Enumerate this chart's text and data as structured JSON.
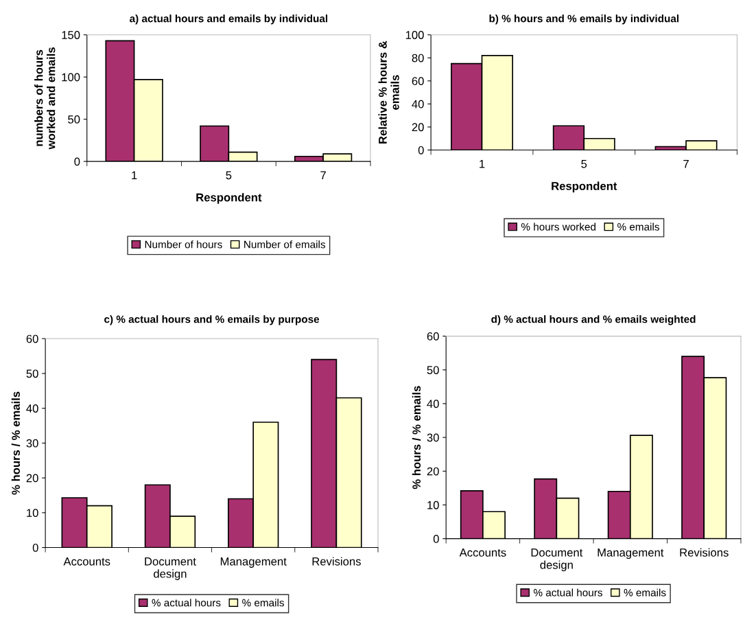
{
  "chart_data": [
    {
      "type": "bar",
      "title": "a) actual hours and emails by individual",
      "xlabel": "Respondent",
      "ylabel": "numbers of hours\nworked and emails",
      "categories": [
        "1",
        "5",
        "7"
      ],
      "series": [
        {
          "name": "Number of hours",
          "color": "#a8306e",
          "values": [
            143,
            42,
            6
          ]
        },
        {
          "name": "Number of emails",
          "color": "#ffffcc",
          "values": [
            97,
            11,
            9
          ]
        }
      ],
      "ylim": [
        0,
        150
      ],
      "yticks": [
        0,
        50,
        100,
        150
      ],
      "grid": false,
      "legend": "bottom"
    },
    {
      "type": "bar",
      "title": "b) % hours and % emails by individual",
      "xlabel": "Respondent",
      "ylabel": "Relative % hours &\nemails",
      "categories": [
        "1",
        "5",
        "7"
      ],
      "series": [
        {
          "name": "% hours worked",
          "color": "#a8306e",
          "values": [
            75,
            21,
            3
          ]
        },
        {
          "name": "% emails",
          "color": "#ffffcc",
          "values": [
            82,
            10,
            8
          ]
        }
      ],
      "ylim": [
        0,
        100
      ],
      "yticks": [
        0,
        20,
        40,
        60,
        80,
        100
      ],
      "grid": false,
      "legend": "bottom"
    },
    {
      "type": "bar",
      "title": "c) % actual hours and % emails by purpose",
      "ylabel": "% hours / % emails",
      "categories": [
        "Accounts",
        "Document\ndesign",
        "Management",
        "Revisions"
      ],
      "series": [
        {
          "name": "% actual hours",
          "color": "#a8306e",
          "values": [
            14.3,
            18,
            14,
            54
          ]
        },
        {
          "name": "% emails",
          "color": "#ffffcc",
          "values": [
            12,
            9,
            36,
            43
          ]
        }
      ],
      "ylim": [
        0,
        60
      ],
      "yticks": [
        0,
        10,
        20,
        30,
        40,
        50,
        60
      ],
      "grid": false,
      "legend": "bottom"
    },
    {
      "type": "bar",
      "title": "d) % actual hours and % emails weighted",
      "ylabel": "% hours / % emails",
      "categories": [
        "Accounts",
        "Document\ndesign",
        "Management",
        "Revisions"
      ],
      "series": [
        {
          "name": "% actual hours",
          "color": "#a8306e",
          "values": [
            14.2,
            17.7,
            14,
            54
          ]
        },
        {
          "name": "% emails",
          "color": "#ffffcc",
          "values": [
            8,
            12,
            30.6,
            47.7
          ]
        }
      ],
      "ylim": [
        0,
        60
      ],
      "yticks": [
        0,
        10,
        20,
        30,
        40,
        50,
        60
      ],
      "grid": false,
      "legend": "bottom"
    }
  ]
}
